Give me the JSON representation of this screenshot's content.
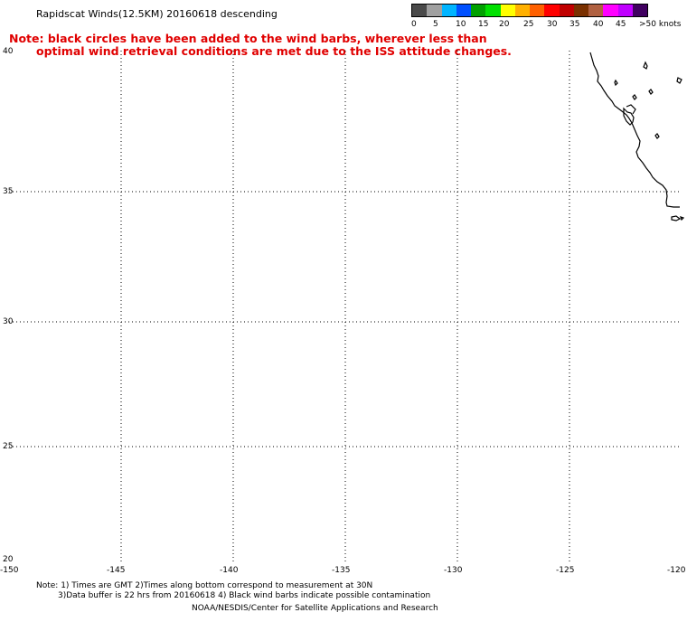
{
  "title": "Rapidscat Winds(12.5KM) 20160618 descending",
  "note_lines": [
    "Note: black circles have been added to the wind barbs, wherever less than",
    "optimal wind retrieval conditions are met due to the ISS attitude changes."
  ],
  "legend": {
    "colors": [
      "#4a4a4a",
      "#a0a0a0",
      "#00b4ff",
      "#0050ff",
      "#00a000",
      "#00e000",
      "#ffff00",
      "#ffb000",
      "#ff6000",
      "#ff0000",
      "#c00000",
      "#7a3000",
      "#b06040",
      "#ff00ff",
      "#c000ff",
      "#400060"
    ],
    "labels": [
      "0",
      "5",
      "10",
      "15",
      "20",
      "25",
      "30",
      "35",
      "40",
      "45",
      ">50 knots"
    ]
  },
  "axes": {
    "lat_labels": [
      "40",
      "35",
      "30",
      "25",
      "20"
    ],
    "lon_labels": [
      "-150",
      "-145",
      "-140",
      "-135",
      "-130",
      "-125",
      "-120"
    ]
  },
  "footnotes": [
    "Note: 1) Times are GMT 2)Times along bottom correspond to measurement at 30N",
    "3)Data buffer is 22 hrs from 20160618 4) Black wind barbs indicate possible contamination",
    "NOAA/NESDIS/Center for Satellite Applications and Research"
  ]
}
